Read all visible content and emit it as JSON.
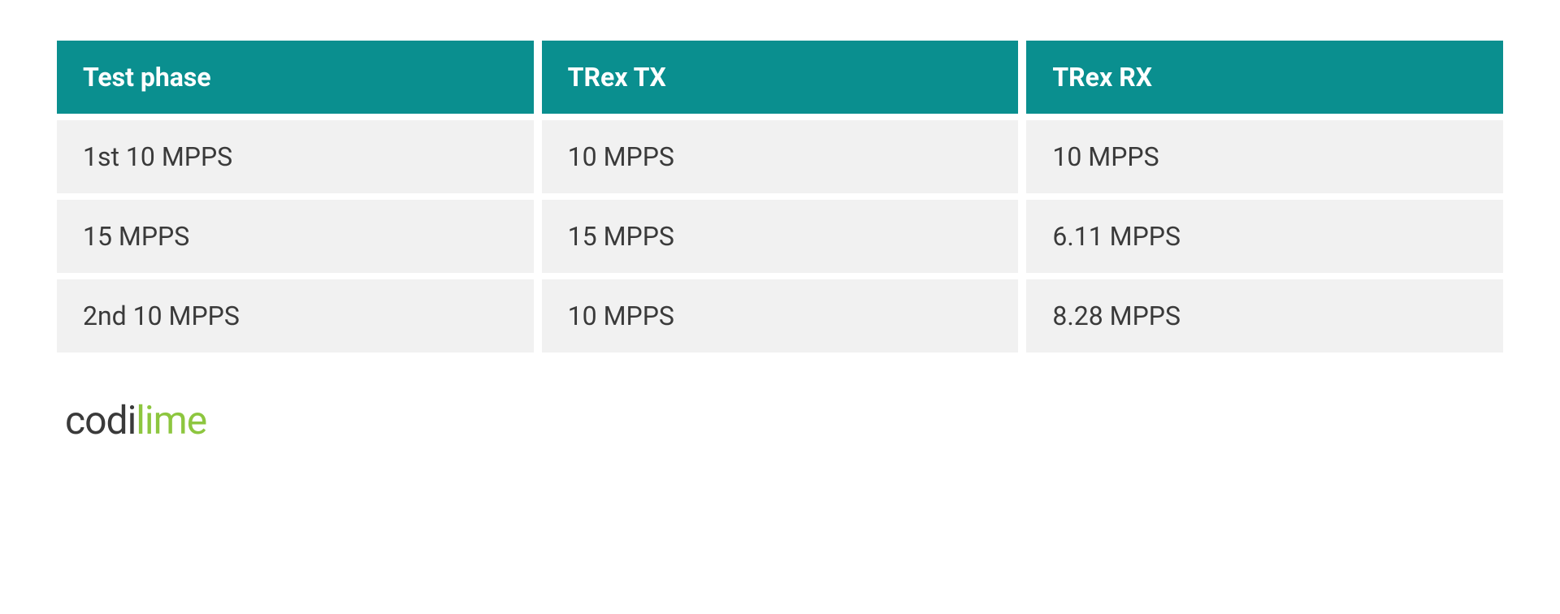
{
  "table": {
    "columns": [
      "Test phase",
      "TRex TX",
      "TRex RX"
    ],
    "rows": [
      [
        "1st 10 MPPS",
        "10 MPPS",
        "10 MPPS"
      ],
      [
        "15 MPPS",
        "15 MPPS",
        "6.11 MPPS"
      ],
      [
        "2nd 10 MPPS",
        "10 MPPS",
        "8.28 MPPS"
      ]
    ],
    "header_bg_color": "#0a8f8f",
    "header_text_color": "#ffffff",
    "row_bg_color": "#f1f1f1",
    "row_text_color": "#3a3a3a",
    "header_font_weight": 700,
    "row_font_weight": 400,
    "font_size": 32,
    "cell_padding_v": 26,
    "cell_padding_h": 32,
    "row_gap": 8,
    "col_gap": 10
  },
  "logo": {
    "part1": "codi",
    "part2": "lime",
    "part1_color": "#3a3a3a",
    "part2_color": "#8dc63f",
    "font_size": 48
  },
  "background_color": "#ffffff"
}
